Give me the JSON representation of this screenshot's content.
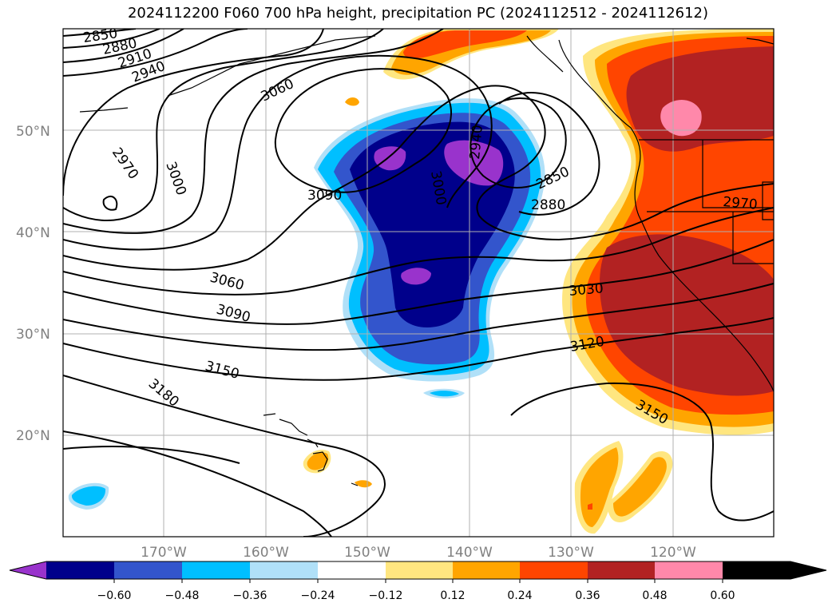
{
  "title": "2024112200 F060 700 hPa height, precipitation PC (2024112512 - 2024112612)",
  "latitude_labels": [
    "50°N",
    "40°N",
    "30°N",
    "20°N"
  ],
  "longitude_labels": [
    "170°W",
    "160°W",
    "150°W",
    "140°W",
    "130°W",
    "120°W"
  ],
  "contour_labels": [
    "2850",
    "2880",
    "2910",
    "2940",
    "3060",
    "2970",
    "3000",
    "3090",
    "3000",
    "2940",
    "2850",
    "2880",
    "2970",
    "3060",
    "3030",
    "3090",
    "3120",
    "3150",
    "3180",
    "3150"
  ],
  "colorbar": {
    "tick_labels": [
      "−0.60",
      "−0.48",
      "−0.36",
      "−0.24",
      "−0.12",
      "0.12",
      "0.24",
      "0.36",
      "0.48",
      "0.60"
    ],
    "colors": [
      "#9933cc",
      "#00008b",
      "#3355cc",
      "#00bfff",
      "#b0e0f8",
      "#ffffff",
      "#ffe680",
      "#ffa500",
      "#ff4500",
      "#b22222",
      "#ff88aa"
    ]
  },
  "colors": {
    "pos_low": "#ffe680",
    "pos_mid": "#ffa500",
    "pos_high": "#ff4500",
    "pos_vhigh": "#b22222",
    "pos_max": "#ff88aa",
    "neg_low": "#b0e0f8",
    "neg_mid": "#00bfff",
    "neg_high": "#3355cc",
    "neg_vhigh": "#00008b",
    "neg_max": "#9933cc"
  }
}
